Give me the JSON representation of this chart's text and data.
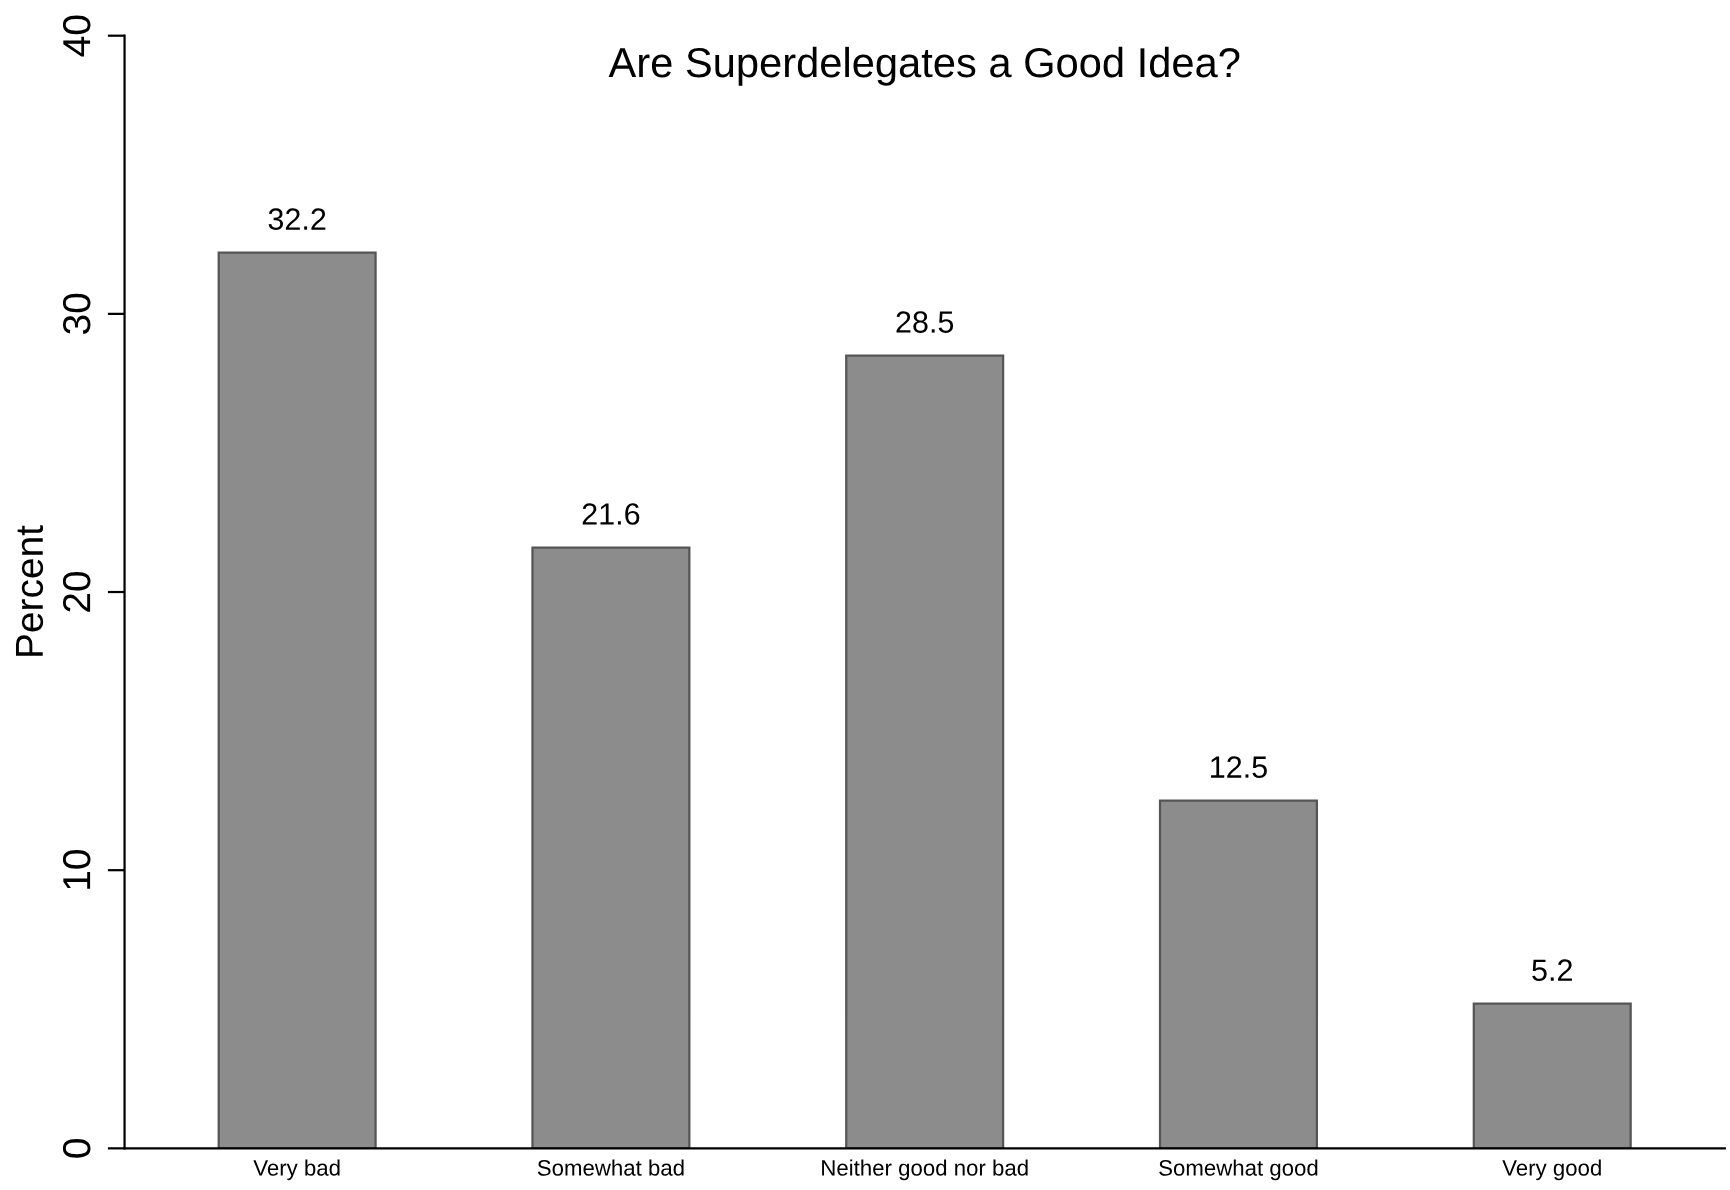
{
  "chart_data": {
    "type": "bar",
    "title": "Are Superdelegates a Good Idea?",
    "ylabel": "Percent",
    "categories": [
      "Very bad",
      "Somewhat bad",
      "Neither good nor bad",
      "Somewhat good",
      "Very good"
    ],
    "values": [
      32.2,
      21.6,
      28.5,
      12.5,
      5.2
    ],
    "color": "#8c8c8c",
    "ylim": [
      0,
      40
    ],
    "yticks": [
      0,
      10,
      20,
      30,
      40
    ],
    "grid": false,
    "data_labels": true
  }
}
